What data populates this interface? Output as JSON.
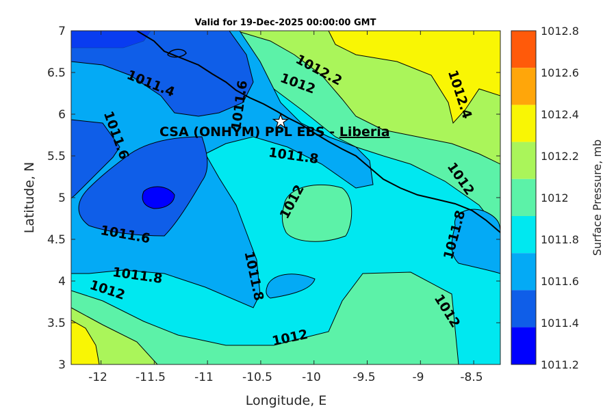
{
  "title": "Valid for 19-Dec-2025 00:00:00 GMT",
  "xlabel": "Longitude, E",
  "ylabel": "Latitude, N",
  "colorbar_label": "Surface Pressure, mb",
  "x_ticks": [
    "-12",
    "-11.5",
    "-11",
    "-10.5",
    "-10",
    "-9.5",
    "-9",
    "-8.5"
  ],
  "y_ticks": [
    "7",
    "6.5",
    "6",
    "5.5",
    "5",
    "4.5",
    "4",
    "3.5",
    "3"
  ],
  "colorbar_ticks": [
    "1012.8",
    "1012.6",
    "1012.4",
    "1012.2",
    "1012",
    "1011.8",
    "1011.6",
    "1011.4",
    "1011.2"
  ],
  "site_label_main": "CSA (ONHYM) PPL EBS  - ",
  "site_label_country": "Liberia",
  "contour_labels": [
    "1011.4",
    "1011.6",
    "1011.6",
    "1011.6",
    "1011.8",
    "1011.8",
    "1011.8",
    "1011.8",
    "1012",
    "1012",
    "1012",
    "1012",
    "1012",
    "1012",
    "1012.2",
    "1012.4"
  ],
  "colors": {
    "c_1011_2": "#0000ff",
    "c_1011_4": "#0f5ee8",
    "c_1011_6": "#04aaf5",
    "c_1011_8": "#00e8f0",
    "c_1012_0": "#5cf2a8",
    "c_1012_2": "#aaf55a",
    "c_1012_4": "#f9f604",
    "c_1012_6": "#ffa60a",
    "c_1012_8": "#ff5a0a"
  },
  "chart_data": {
    "type": "heatmap",
    "title": "Valid for 19-Dec-2025 00:00:00 GMT",
    "xlabel": "Longitude, E",
    "ylabel": "Latitude, N",
    "xlim": [
      -12.28,
      -8.25
    ],
    "ylim": [
      3,
      7
    ],
    "colorbar_range": [
      1011.2,
      1012.8
    ],
    "colorbar_step": 0.2,
    "contour_levels": [
      1011.4,
      1011.6,
      1011.8,
      1012.0,
      1012.2,
      1012.4
    ],
    "site": {
      "name": "CSA (ONHYM) PPL EBS",
      "country": "Liberia",
      "lon": -10.3,
      "lat": 5.93
    }
  }
}
